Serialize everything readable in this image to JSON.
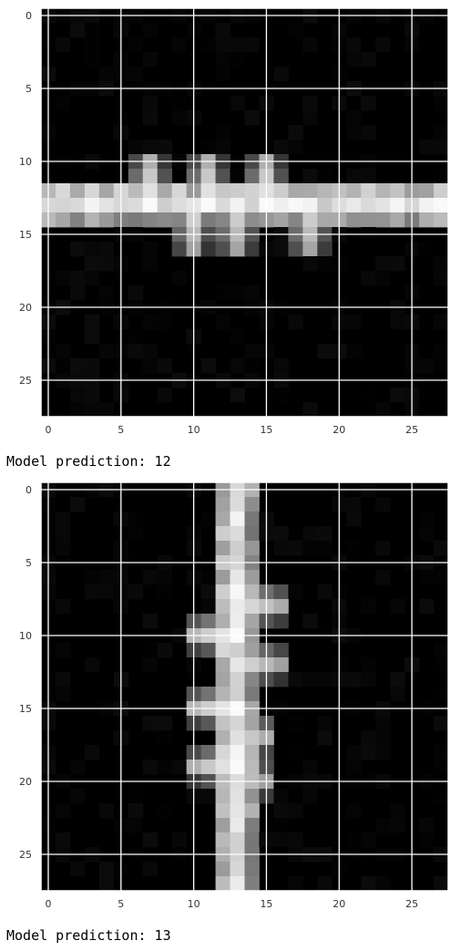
{
  "chart_data": [
    {
      "type": "heatmap",
      "rows": 28,
      "cols": 28,
      "colormap": "gray",
      "grid": true,
      "grid_color": "#ffffff",
      "xticks": [
        0,
        5,
        10,
        15,
        20,
        25
      ],
      "yticks": [
        0,
        5,
        10,
        15,
        20,
        25
      ],
      "xlim": [
        -0.5,
        27.5
      ],
      "ylim": [
        27.5,
        -0.5
      ],
      "orientation": "horizontal",
      "stroke_center": 13,
      "spikes": [
        {
          "pos": 7,
          "dir": -1,
          "amp": 2.5,
          "v": 0.98
        },
        {
          "pos": 9.5,
          "dir": 1,
          "amp": 2.5,
          "v": 0.9
        },
        {
          "pos": 11,
          "dir": -1,
          "amp": 2.5,
          "v": 0.98
        },
        {
          "pos": 13,
          "dir": 1,
          "amp": 3,
          "v": 0.88
        },
        {
          "pos": 15,
          "dir": -1,
          "amp": 2.5,
          "v": 0.98
        },
        {
          "pos": 17.5,
          "dir": 1,
          "amp": 3,
          "v": 0.88
        },
        {
          "pos": 20,
          "dir": -1,
          "amp": 1,
          "v": 0.6
        }
      ],
      "prediction": "Model prediction: 12"
    },
    {
      "type": "heatmap",
      "rows": 28,
      "cols": 28,
      "colormap": "gray",
      "grid": true,
      "grid_color": "#ffffff",
      "xticks": [
        0,
        5,
        10,
        15,
        20,
        25
      ],
      "yticks": [
        0,
        5,
        10,
        15,
        20,
        25
      ],
      "xlim": [
        -0.5,
        27.5
      ],
      "ylim": [
        27.5,
        -0.5
      ],
      "orientation": "vertical",
      "stroke_center": 13,
      "spikes": [
        {
          "pos": 7.5,
          "dir": 1,
          "amp": 3,
          "v": 0.92
        },
        {
          "pos": 10,
          "dir": -1,
          "amp": 3,
          "v": 0.98
        },
        {
          "pos": 12,
          "dir": 1,
          "amp": 2.5,
          "v": 0.9
        },
        {
          "pos": 15,
          "dir": -1,
          "amp": 3,
          "v": 0.98
        },
        {
          "pos": 16.5,
          "dir": 1,
          "amp": 2,
          "v": 0.88
        },
        {
          "pos": 19,
          "dir": -1,
          "amp": 2.5,
          "v": 0.98
        },
        {
          "pos": 20,
          "dir": 1,
          "amp": 1.5,
          "v": 0.85
        }
      ],
      "prediction": "Model prediction: 13"
    }
  ]
}
